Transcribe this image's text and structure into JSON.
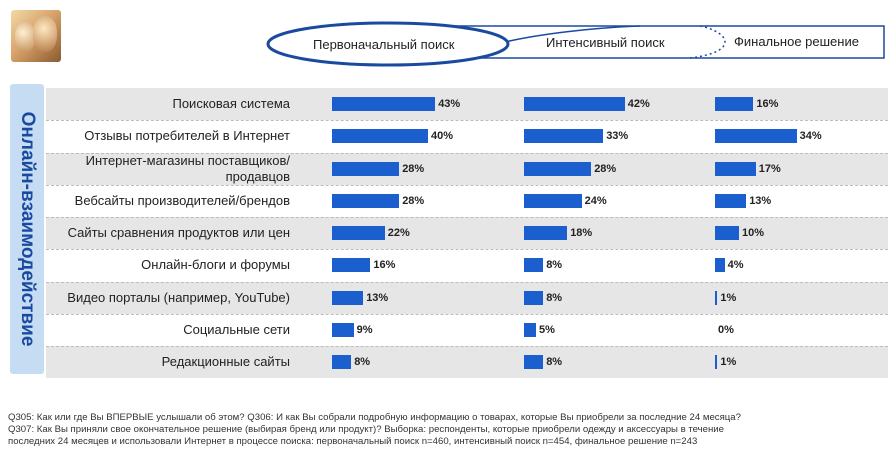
{
  "chart_data": {
    "type": "bar",
    "orientation": "horizontal",
    "group_label": "Онлайн-взаимодействие",
    "categories": [
      [
        "Поисковая система"
      ],
      [
        "Отзывы потребителей в Интернет"
      ],
      [
        "Интернет-магазины поставщиков/",
        "продавцов"
      ],
      [
        "Вебсайты производителей/брендов"
      ],
      [
        "Сайты сравнения продуктов или цен"
      ],
      [
        "Онлайн-блоги и форумы"
      ],
      [
        "Видео порталы (например, YouTube)"
      ],
      [
        "Социальные сети"
      ],
      [
        "Редакционные сайты"
      ]
    ],
    "series": [
      {
        "name": "Первоначальный поиск",
        "values": [
          43,
          40,
          28,
          28,
          22,
          16,
          13,
          9,
          8
        ]
      },
      {
        "name": "Интенсивный поиск",
        "values": [
          42,
          33,
          28,
          24,
          18,
          8,
          8,
          5,
          8
        ]
      },
      {
        "name": "Финальное решение",
        "values": [
          16,
          34,
          17,
          13,
          10,
          4,
          1,
          0,
          1
        ]
      }
    ],
    "value_suffix": "%",
    "colors": {
      "bar": "#1b5fcf",
      "band": "#e6e6e6",
      "side_label_bg": "#c6dcf2",
      "side_label_text": "#1a4aa0"
    }
  },
  "footnote": [
    "Q305: Как или где Вы  ВПЕРВЫЕ  услышали об этом? Q306: И как Вы  собрали подробную информацию о товарах, которые Вы приобрели за последние 24 месяца?",
    "Q307: Как Вы  приняли свое окончательное решение (выбирая бренд или продукт)? Выборка: респонденты, которые приобрели одежду и аксессуары в течение",
    "последних 24 месяцев и использовали Интернет в процессе поиска: первоначальный поиск n=460, интенсивный поиск n=454, финальное решение  n=243"
  ],
  "logo": {
    "icon": "people-photo-icon"
  }
}
